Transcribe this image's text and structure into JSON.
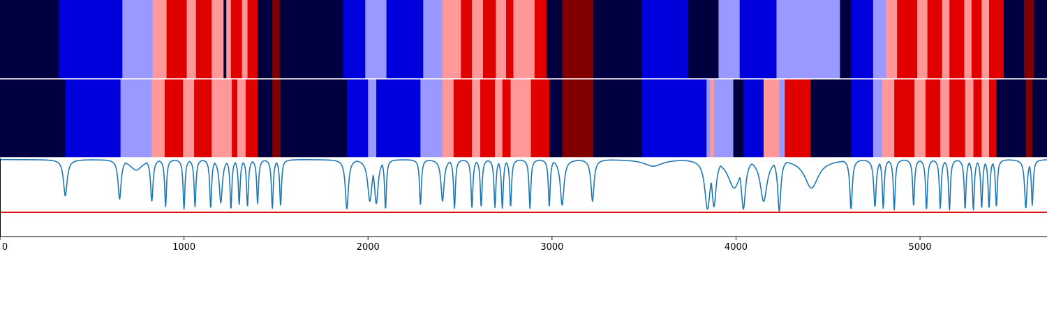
{
  "chart_data": [
    {
      "type": "heatmap",
      "title": "",
      "xlim": [
        0,
        5690
      ],
      "palette": {
        "0": "#000040",
        "1": "#0000dd",
        "2": "#9999ff",
        "3": "#ff9999",
        "4": "#e00000",
        "5": "#800000"
      },
      "segments": [
        [
          0,
          320,
          0
        ],
        [
          320,
          665,
          1
        ],
        [
          665,
          830,
          2
        ],
        [
          830,
          905,
          3
        ],
        [
          905,
          1015,
          4
        ],
        [
          1015,
          1065,
          3
        ],
        [
          1065,
          1150,
          4
        ],
        [
          1150,
          1215,
          3
        ],
        [
          1215,
          1230,
          0
        ],
        [
          1230,
          1255,
          3
        ],
        [
          1255,
          1315,
          4
        ],
        [
          1315,
          1345,
          3
        ],
        [
          1345,
          1400,
          4
        ],
        [
          1400,
          1480,
          0
        ],
        [
          1480,
          1520,
          5
        ],
        [
          1520,
          1865,
          0
        ],
        [
          1865,
          1985,
          1
        ],
        [
          1985,
          2100,
          2
        ],
        [
          2100,
          2300,
          1
        ],
        [
          2300,
          2405,
          2
        ],
        [
          2405,
          2505,
          3
        ],
        [
          2505,
          2565,
          4
        ],
        [
          2565,
          2625,
          3
        ],
        [
          2625,
          2695,
          4
        ],
        [
          2695,
          2750,
          3
        ],
        [
          2750,
          2790,
          4
        ],
        [
          2790,
          2905,
          3
        ],
        [
          2905,
          2970,
          4
        ],
        [
          2970,
          3055,
          0
        ],
        [
          3055,
          3225,
          5
        ],
        [
          3225,
          3490,
          0
        ],
        [
          3490,
          3740,
          1
        ],
        [
          3740,
          3905,
          0
        ],
        [
          3905,
          4020,
          2
        ],
        [
          4020,
          4220,
          1
        ],
        [
          4220,
          4565,
          2
        ],
        [
          4565,
          4625,
          0
        ],
        [
          4625,
          4745,
          1
        ],
        [
          4745,
          4815,
          2
        ],
        [
          4815,
          4875,
          3
        ],
        [
          4875,
          4985,
          4
        ],
        [
          4985,
          5040,
          3
        ],
        [
          5040,
          5120,
          4
        ],
        [
          5120,
          5160,
          3
        ],
        [
          5160,
          5240,
          4
        ],
        [
          5240,
          5280,
          3
        ],
        [
          5280,
          5335,
          4
        ],
        [
          5335,
          5375,
          3
        ],
        [
          5375,
          5455,
          4
        ],
        [
          5455,
          5565,
          0
        ],
        [
          5565,
          5620,
          5
        ],
        [
          5620,
          5690,
          0
        ]
      ]
    },
    {
      "type": "heatmap",
      "title": "",
      "xlim": [
        0,
        5690
      ],
      "segments": [
        [
          0,
          355,
          0
        ],
        [
          355,
          655,
          1
        ],
        [
          655,
          825,
          2
        ],
        [
          825,
          895,
          3
        ],
        [
          895,
          995,
          4
        ],
        [
          995,
          1055,
          3
        ],
        [
          1055,
          1150,
          4
        ],
        [
          1150,
          1195,
          3
        ],
        [
          1195,
          1260,
          3
        ],
        [
          1260,
          1290,
          4
        ],
        [
          1290,
          1335,
          3
        ],
        [
          1335,
          1400,
          4
        ],
        [
          1400,
          1480,
          0
        ],
        [
          1480,
          1525,
          5
        ],
        [
          1525,
          1885,
          0
        ],
        [
          1885,
          2000,
          1
        ],
        [
          2000,
          2045,
          2
        ],
        [
          2045,
          2095,
          1
        ],
        [
          2095,
          2285,
          1
        ],
        [
          2285,
          2405,
          2
        ],
        [
          2405,
          2465,
          3
        ],
        [
          2465,
          2565,
          4
        ],
        [
          2565,
          2610,
          3
        ],
        [
          2610,
          2690,
          4
        ],
        [
          2690,
          2730,
          3
        ],
        [
          2730,
          2775,
          4
        ],
        [
          2775,
          2885,
          3
        ],
        [
          2885,
          2985,
          4
        ],
        [
          2985,
          3055,
          0
        ],
        [
          3055,
          3225,
          5
        ],
        [
          3225,
          3490,
          0
        ],
        [
          3490,
          3840,
          1
        ],
        [
          3840,
          3860,
          2
        ],
        [
          3860,
          3880,
          3
        ],
        [
          3880,
          3985,
          2
        ],
        [
          3985,
          4040,
          0
        ],
        [
          4040,
          4150,
          1
        ],
        [
          4150,
          4235,
          3
        ],
        [
          4235,
          4265,
          2
        ],
        [
          4265,
          4405,
          4
        ],
        [
          4405,
          4625,
          0
        ],
        [
          4625,
          4745,
          1
        ],
        [
          4745,
          4795,
          2
        ],
        [
          4795,
          4860,
          3
        ],
        [
          4860,
          4970,
          4
        ],
        [
          4970,
          5030,
          3
        ],
        [
          5030,
          5110,
          4
        ],
        [
          5110,
          5160,
          3
        ],
        [
          5160,
          5245,
          4
        ],
        [
          5245,
          5290,
          3
        ],
        [
          5290,
          5335,
          4
        ],
        [
          5335,
          5375,
          3
        ],
        [
          5375,
          5415,
          4
        ],
        [
          5415,
          5575,
          0
        ],
        [
          5575,
          5610,
          5
        ],
        [
          5610,
          5690,
          0
        ]
      ]
    },
    {
      "type": "line",
      "title": "",
      "xlabel": "",
      "ylabel": "",
      "xlim": [
        0,
        5690
      ],
      "ylim": [
        0,
        1
      ],
      "xticks": [
        "0",
        "1000",
        "2000",
        "3000",
        "4000",
        "5000"
      ],
      "line_color": "#1f77b4",
      "threshold": {
        "y": 0.31,
        "color": "#e00000"
      },
      "baseline": 0.985,
      "dips": [
        [
          355,
          0.52,
          12
        ],
        [
          650,
          0.48,
          10
        ],
        [
          740,
          0.85,
          40
        ],
        [
          825,
          0.45,
          8
        ],
        [
          900,
          0.38,
          6
        ],
        [
          1000,
          0.35,
          6
        ],
        [
          1060,
          0.38,
          6
        ],
        [
          1145,
          0.36,
          6
        ],
        [
          1200,
          0.43,
          10
        ],
        [
          1255,
          0.35,
          6
        ],
        [
          1300,
          0.41,
          6
        ],
        [
          1345,
          0.38,
          6
        ],
        [
          1400,
          0.42,
          6
        ],
        [
          1480,
          0.36,
          6
        ],
        [
          1525,
          0.39,
          6
        ],
        [
          1885,
          0.35,
          10
        ],
        [
          2010,
          0.45,
          14
        ],
        [
          2045,
          0.42,
          12
        ],
        [
          2095,
          0.35,
          6
        ],
        [
          2285,
          0.4,
          6
        ],
        [
          2405,
          0.45,
          10
        ],
        [
          2470,
          0.36,
          6
        ],
        [
          2565,
          0.36,
          6
        ],
        [
          2615,
          0.38,
          6
        ],
        [
          2690,
          0.37,
          6
        ],
        [
          2730,
          0.36,
          6
        ],
        [
          2775,
          0.38,
          6
        ],
        [
          2880,
          0.36,
          6
        ],
        [
          2985,
          0.38,
          6
        ],
        [
          3055,
          0.4,
          12
        ],
        [
          3220,
          0.45,
          10
        ],
        [
          3550,
          0.9,
          60
        ],
        [
          3845,
          0.35,
          18
        ],
        [
          3880,
          0.38,
          14
        ],
        [
          3990,
          0.62,
          40
        ],
        [
          4040,
          0.35,
          14
        ],
        [
          4150,
          0.45,
          22
        ],
        [
          4235,
          0.32,
          10
        ],
        [
          4410,
          0.62,
          45
        ],
        [
          4625,
          0.35,
          8
        ],
        [
          4755,
          0.38,
          8
        ],
        [
          4800,
          0.36,
          6
        ],
        [
          4860,
          0.34,
          6
        ],
        [
          4965,
          0.39,
          6
        ],
        [
          5035,
          0.34,
          6
        ],
        [
          5110,
          0.36,
          6
        ],
        [
          5160,
          0.34,
          6
        ],
        [
          5245,
          0.35,
          6
        ],
        [
          5290,
          0.34,
          6
        ],
        [
          5335,
          0.36,
          6
        ],
        [
          5375,
          0.36,
          6
        ],
        [
          5415,
          0.38,
          6
        ],
        [
          5575,
          0.36,
          8
        ],
        [
          5610,
          0.4,
          6
        ]
      ]
    }
  ]
}
